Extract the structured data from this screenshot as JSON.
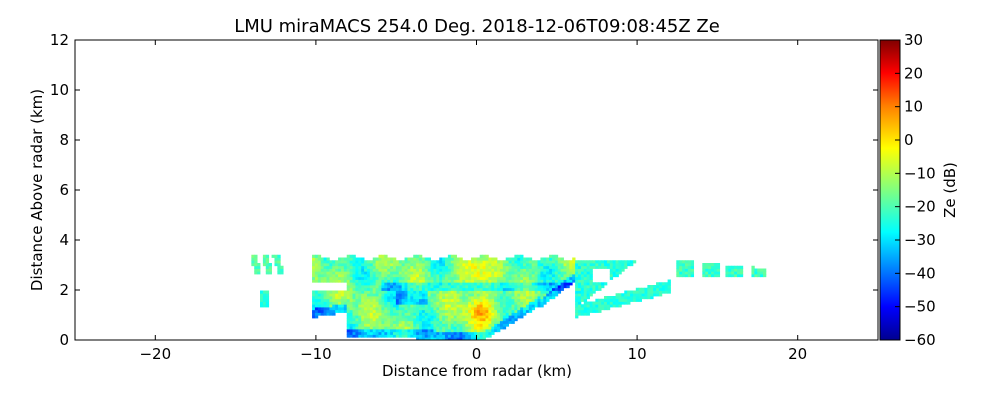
{
  "chart_data": {
    "type": "heatmap",
    "title": "LMU miraMACS 254.0 Deg. 2018-12-06T09:08:45Z  Ze",
    "xlabel": "Distance from radar (km)",
    "ylabel": "Distance Above radar  (km)",
    "xlim": [
      -25,
      25
    ],
    "ylim": [
      0,
      12
    ],
    "xticks": [
      -20,
      -10,
      0,
      10,
      20
    ],
    "yticks": [
      0,
      2,
      4,
      6,
      8,
      10,
      12
    ],
    "xtick_labels": [
      "−20",
      "−10",
      "0",
      "10",
      "20"
    ],
    "ytick_labels": [
      "0",
      "2",
      "4",
      "6",
      "8",
      "10",
      "12"
    ],
    "colorbar": {
      "label": "Ze (dB)",
      "range": [
        -60,
        30
      ],
      "ticks": [
        30,
        20,
        10,
        0,
        -10,
        -20,
        -30,
        -40,
        -50,
        -60
      ],
      "tick_labels": [
        "30",
        "20",
        "10",
        "0",
        "−10",
        "−20",
        "−30",
        "−40",
        "−50",
        "−60"
      ],
      "colors": [
        "#00008f",
        "#0000ff",
        "#00ffff",
        "#80ff80",
        "#ffff00",
        "#ff8000",
        "#ff0000",
        "#800000"
      ]
    },
    "regions": [
      {
        "name": "main-cloud-layer",
        "x_range": [
          -10.3,
          6.2
        ],
        "top_km": 3.3,
        "base_x_at_zero": 0.5,
        "mean_ze_db": -18
      },
      {
        "name": "left-fragment",
        "x_range": [
          -14.0,
          -12.0
        ],
        "top_km": 3.4,
        "bottom_km": 2.6,
        "mean_ze_db": -22
      },
      {
        "name": "left-low-fragment",
        "x_range": [
          -13.5,
          -12.5
        ],
        "top_km": 2.0,
        "bottom_km": 1.3,
        "mean_ze_db": -25
      },
      {
        "name": "right-layer",
        "x_range": [
          7.0,
          11.8
        ],
        "top_km": 3.2,
        "bottom_km": 2.5,
        "mean_ze_db": -24
      },
      {
        "name": "far-right-streaks",
        "x_range": [
          12.5,
          18.0
        ],
        "top_km": 3.2,
        "bottom_km": 2.5,
        "mean_ze_db": -22
      },
      {
        "name": "core-upper",
        "x_center": -0.3,
        "y_center": 2.6,
        "mean_ze_db": 5
      },
      {
        "name": "core-lower",
        "x_center": 0.3,
        "y_center": 1.2,
        "mean_ze_db": 3
      }
    ]
  }
}
